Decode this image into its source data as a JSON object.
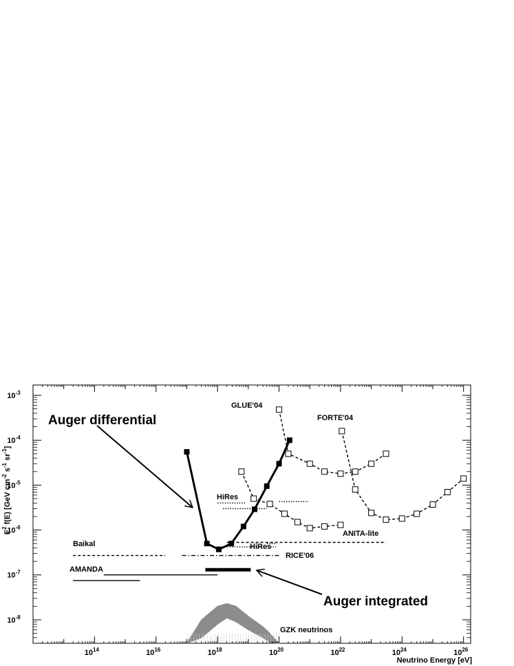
{
  "chart_data": {
    "type": "line",
    "title": "",
    "xlabel": "Neutrino Energy [eV]",
    "ylabel": "E2 f(E) [GeV cm-2 s-1 sr-1]",
    "ylabel_parts": {
      "a": "E",
      "b": "2",
      "c": " f(E) [GeV cm",
      "d": "-2",
      "e": " s",
      "f": "-1",
      "g": " sr",
      "h": "-1",
      "i": "]"
    },
    "xscale": "log",
    "yscale": "log",
    "xlim": [
      1000000000000.0,
      1.7e+26
    ],
    "ylim": [
      3e-09,
      0.0017
    ],
    "x_tick_labels": [
      {
        "base": "10",
        "exp": "14",
        "value": 100000000000000.0
      },
      {
        "base": "10",
        "exp": "16",
        "value": 1e+16
      },
      {
        "base": "10",
        "exp": "18",
        "value": 1e+18
      },
      {
        "base": "10",
        "exp": "20",
        "value": 1e+20
      },
      {
        "base": "10",
        "exp": "22",
        "value": 1e+22
      },
      {
        "base": "10",
        "exp": "24",
        "value": 1e+24
      },
      {
        "base": "10",
        "exp": "26",
        "value": 1e+26
      }
    ],
    "y_tick_labels": [
      {
        "base": "10",
        "exp": "-8",
        "value": 1e-08
      },
      {
        "base": "10",
        "exp": "-7",
        "value": 1e-07
      },
      {
        "base": "10",
        "exp": "-6",
        "value": 1e-06
      },
      {
        "base": "10",
        "exp": "-5",
        "value": 1e-05
      },
      {
        "base": "10",
        "exp": "-4",
        "value": 0.0001
      },
      {
        "base": "10",
        "exp": "-3",
        "value": 0.001
      }
    ],
    "series": [
      {
        "name": "Auger differential",
        "style": "thick-solid-squares",
        "x": [
          1e+17,
          4.5e+17,
          1.1e+18,
          2.8e+18,
          7e+18,
          1.6e+19,
          4e+19,
          1e+20,
          2.2e+20
        ],
        "y": [
          5.5e-05,
          5e-07,
          3.7e-07,
          5e-07,
          1.2e-06,
          2.9e-06,
          9.5e-06,
          3e-05,
          0.0001
        ]
      },
      {
        "name": "Auger integrated",
        "style": "thick-solid",
        "x": [
          4e+17,
          1.2e+19
        ],
        "y": [
          1.3e-07,
          1.3e-07
        ]
      },
      {
        "name": "GLUE'04",
        "style": "dashed-open-squares",
        "x": [
          1e+20,
          2e+20,
          1e+21,
          3e+21,
          1e+22,
          3e+22,
          1e+23,
          3e+23
        ],
        "y": [
          0.00048,
          5e-05,
          3e-05,
          2e-05,
          1.8e-05,
          2e-05,
          3e-05,
          5e-05
        ]
      },
      {
        "name": "FORTE'04",
        "style": "dashed-open-squares",
        "x": [
          1.1e+22,
          3e+22,
          1e+23,
          3e+23,
          1e+24,
          3e+24,
          1e+25,
          3e+25,
          1e+26
        ],
        "y": [
          0.00016,
          8e-06,
          2.4e-06,
          1.7e-06,
          1.8e-06,
          2.3e-06,
          3.7e-06,
          7e-06,
          1.4e-05
        ]
      },
      {
        "name": "ANITA-lite",
        "style": "dashed-open-squares",
        "x": [
          6e+18,
          1.5e+19,
          5e+19,
          1.5e+20,
          4e+20,
          1e+21,
          3e+21,
          1e+22
        ],
        "y": [
          2e-05,
          5e-06,
          3.8e-06,
          2.3e-06,
          1.5e-06,
          1.1e-06,
          1.2e-06,
          1.3e-06
        ]
      },
      {
        "name": "ANITA-lite",
        "style": "dashed",
        "x": [
          2e+18,
          3e+23
        ],
        "y": [
          5.3e-07,
          5.3e-07
        ]
      },
      {
        "name": "HiRes",
        "style": "dotted",
        "x": [
          1e+18,
          8e+18
        ],
        "y": [
          4e-06,
          4e-06
        ]
      },
      {
        "name": "HiRes",
        "style": "dotted",
        "x": [
          1e+20,
          9e+20
        ],
        "y": [
          4.3e-06,
          4.3e-06
        ]
      },
      {
        "name": "HiRes",
        "style": "dotted",
        "x": [
          1.5e+18,
          4e+19
        ],
        "y": [
          3e-06,
          3e-06
        ]
      },
      {
        "name": "HiRes",
        "style": "dotted",
        "x": [
          4e+19,
          8e+19
        ],
        "y": [
          5e-07,
          5e-07
        ]
      },
      {
        "name": "HiRes",
        "style": "dotted",
        "x": [
          1e+18,
          8e+19
        ],
        "y": [
          4.2e-07,
          4.2e-07
        ]
      },
      {
        "name": "RICE'06",
        "style": "dash-dot",
        "x": [
          7e+16,
          1e+20
        ],
        "y": [
          2.7e-07,
          2.7e-07
        ]
      },
      {
        "name": "Baikal",
        "style": "dashed",
        "x": [
          20000000000000.0,
          2e+16
        ],
        "y": [
          2.7e-07,
          2.7e-07
        ]
      },
      {
        "name": "AMANDA",
        "style": "solid",
        "x": [
          20000000000000.0,
          3000000000000000.0
        ],
        "y": [
          7.5e-08,
          7.5e-08
        ]
      },
      {
        "name": "AMANDA",
        "style": "solid",
        "x": [
          200000000000000.0,
          1e+18
        ],
        "y": [
          1e-07,
          1e-07
        ]
      },
      {
        "name": "GZK neutrinos",
        "style": "gray-band",
        "x": [
          1e+17,
          3e+17,
          1e+18,
          2e+18,
          4e+18,
          1e+19,
          3e+19,
          5e+19,
          8e+19,
          1e+20
        ],
        "y": [
          3e-09,
          1e-08,
          2e-08,
          2.3e-08,
          2e-08,
          1.2e-08,
          7e-09,
          5e-09,
          3.5e-09,
          3e-09
        ],
        "y_low": [
          3e-09,
          4e-09,
          8e-09,
          1.1e-08,
          9e-09,
          6e-09,
          4e-09,
          3.2e-09,
          3e-09,
          3e-09
        ]
      }
    ],
    "labels": {
      "auger_differential": "Auger differential",
      "auger_integrated": "Auger integrated",
      "glue": "GLUE'04",
      "forte": "FORTE'04",
      "hires_upper": "HiRes",
      "hires_lower": "HiRes",
      "anita": "ANITA-lite",
      "rice": "RICE'06",
      "baikal": "Baikal",
      "amanda": "AMANDA",
      "gzk": "GZK neutrinos"
    },
    "grid": false,
    "legend": "none"
  }
}
